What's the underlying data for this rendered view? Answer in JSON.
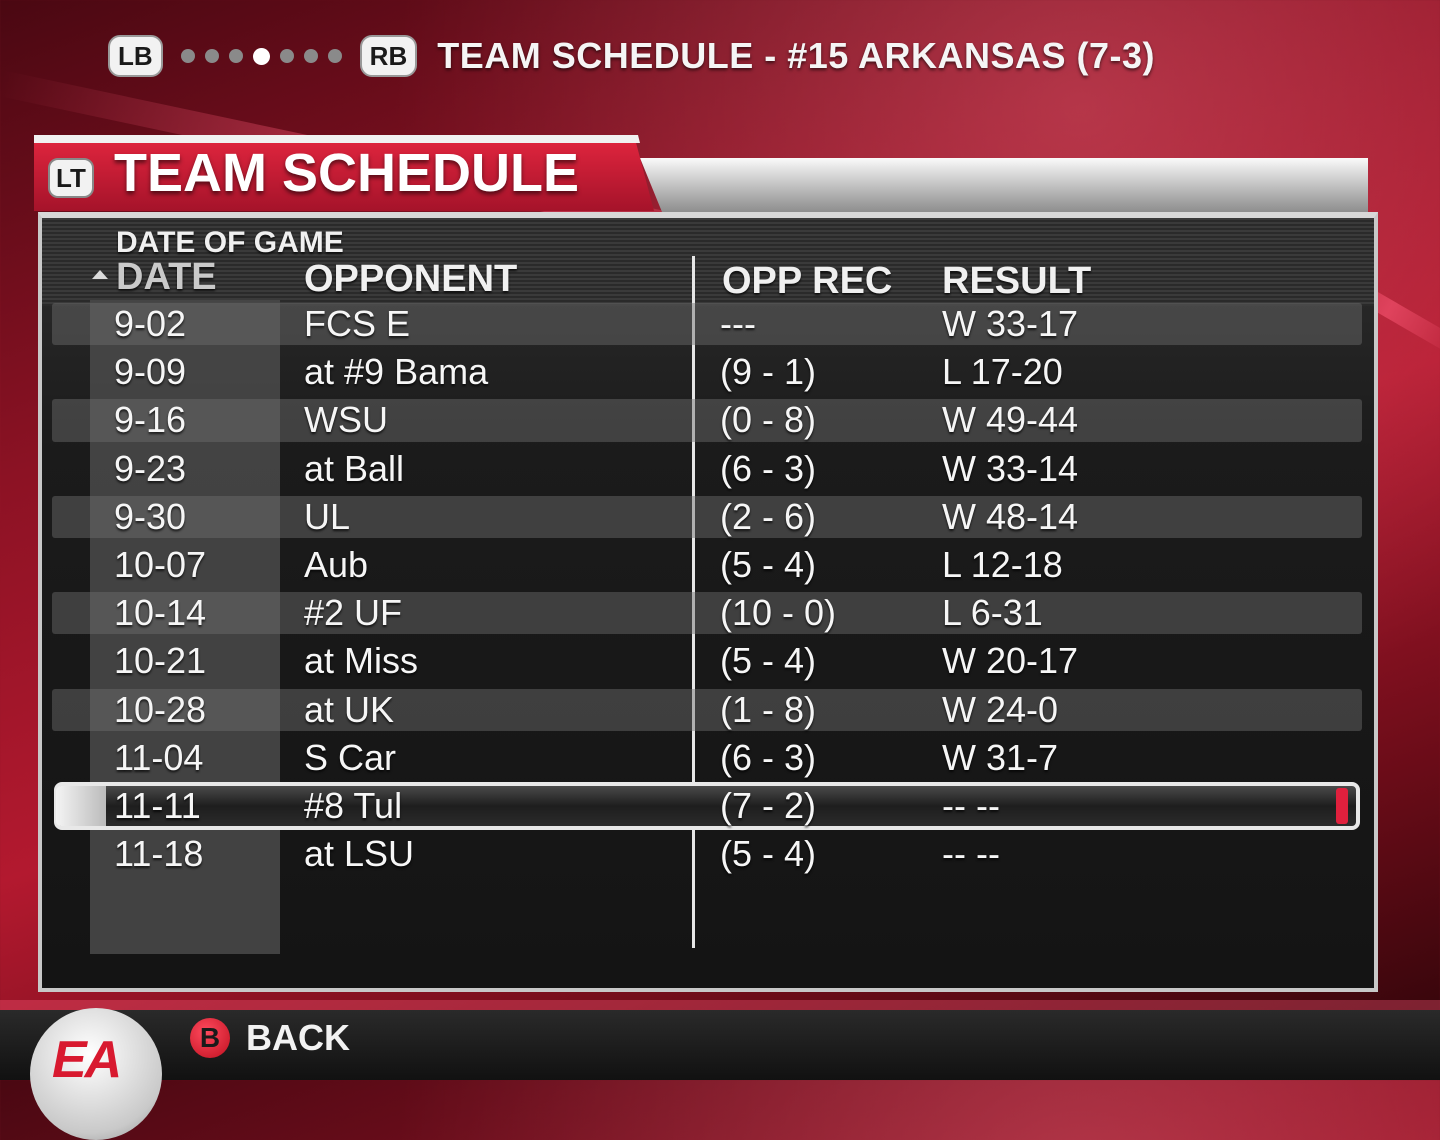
{
  "topbar": {
    "lb": "LB",
    "rb": "RB",
    "dots_total": 7,
    "dots_active_index": 3,
    "title": "TEAM SCHEDULE - #15 ARKANSAS (7-3)"
  },
  "header": {
    "lt": "LT",
    "title": "TEAM SCHEDULE"
  },
  "table": {
    "sort_hint": "DATE OF GAME",
    "columns": {
      "date": "DATE",
      "opponent": "OPPONENT",
      "opp_rec": "OPP REC",
      "result": "RESULT"
    },
    "selected_index": 10,
    "rows": [
      {
        "date": "9-02",
        "opponent": "FCS E",
        "opp_rec": "---",
        "result": "W 33-17"
      },
      {
        "date": "9-09",
        "opponent": "at #9 Bama",
        "opp_rec": "(9 - 1)",
        "result": "L 17-20"
      },
      {
        "date": "9-16",
        "opponent": "WSU",
        "opp_rec": "(0 - 8)",
        "result": "W 49-44"
      },
      {
        "date": "9-23",
        "opponent": "at Ball",
        "opp_rec": "(6 - 3)",
        "result": "W 33-14"
      },
      {
        "date": "9-30",
        "opponent": "UL",
        "opp_rec": "(2 - 6)",
        "result": "W 48-14"
      },
      {
        "date": "10-07",
        "opponent": "Aub",
        "opp_rec": "(5 - 4)",
        "result": "L 12-18"
      },
      {
        "date": "10-14",
        "opponent": "#2 UF",
        "opp_rec": "(10 - 0)",
        "result": "L 6-31"
      },
      {
        "date": "10-21",
        "opponent": "at Miss",
        "opp_rec": "(5 - 4)",
        "result": "W 20-17"
      },
      {
        "date": "10-28",
        "opponent": "at UK",
        "opp_rec": "(1 - 8)",
        "result": "W 24-0"
      },
      {
        "date": "11-04",
        "opponent": "S Car",
        "opp_rec": "(6 - 3)",
        "result": "W 31-7"
      },
      {
        "date": "11-11",
        "opponent": "#8 Tul",
        "opp_rec": "(7 - 2)",
        "result": "-- --"
      },
      {
        "date": "11-18",
        "opponent": "at LSU",
        "opp_rec": "(5 - 4)",
        "result": "-- --"
      }
    ]
  },
  "footer": {
    "logo": "EA",
    "b_button": "B",
    "back_label": "BACK"
  },
  "colors": {
    "accent_red": "#d8192f",
    "panel_dark": "#1b1b1b",
    "row_alt": "#555555"
  }
}
